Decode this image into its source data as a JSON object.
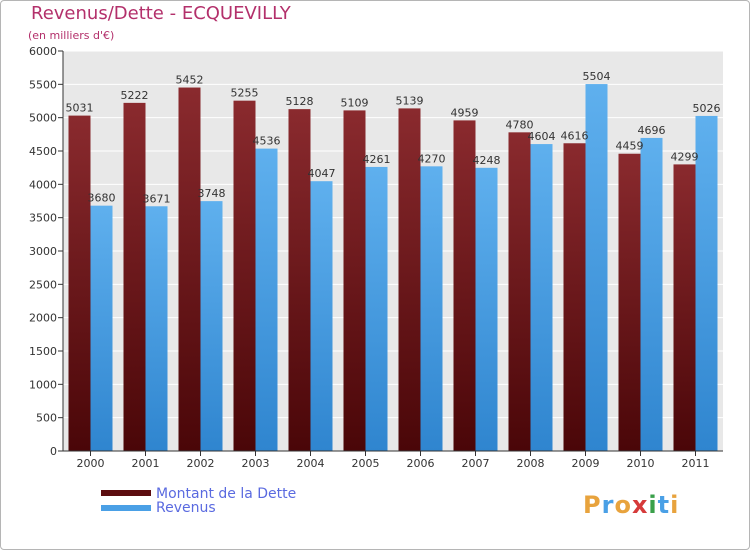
{
  "title": "Revenus/Dette - ECQUEVILLY",
  "subtitle": "(en milliers d'€)",
  "chart_data": {
    "type": "bar",
    "title": "Revenus/Dette - ECQUEVILLY",
    "ylabel": "(en milliers d'€)",
    "xlabel": "",
    "categories": [
      "2000",
      "2001",
      "2002",
      "2003",
      "2004",
      "2005",
      "2006",
      "2007",
      "2008",
      "2009",
      "2010",
      "2011"
    ],
    "series": [
      {
        "name": "Montant de la Dette",
        "color": "#7a1f23",
        "values": [
          5031,
          5222,
          5452,
          5255,
          5128,
          5109,
          5139,
          4959,
          4780,
          4616,
          4459,
          4299
        ]
      },
      {
        "name": "Revenus",
        "color": "#4aa0e6",
        "values": [
          3680,
          3671,
          3748,
          4536,
          4047,
          4261,
          4270,
          4248,
          4604,
          5504,
          4696,
          5026
        ]
      }
    ],
    "ylim": [
      0,
      6000
    ],
    "yticks": [
      0,
      500,
      1000,
      1500,
      2000,
      2500,
      3000,
      3500,
      4000,
      4500,
      5000,
      5500,
      6000
    ],
    "grid": true,
    "legend": "bottom-left"
  },
  "legend": [
    {
      "label": "Montant de la Dette",
      "color": "#5c0d0f"
    },
    {
      "label": "Revenus",
      "color": "#4aa0e6"
    }
  ],
  "logo": {
    "text": "Proxiti",
    "letters": [
      {
        "ch": "P",
        "color": "#e8a33d"
      },
      {
        "ch": "r",
        "color": "#4aa0e6"
      },
      {
        "ch": "o",
        "color": "#e8a33d"
      },
      {
        "ch": "x",
        "color": "#d63a3a"
      },
      {
        "ch": "i",
        "color": "#3aa04a"
      },
      {
        "ch": "t",
        "color": "#4aa0e6"
      },
      {
        "ch": "i",
        "color": "#e8a33d"
      }
    ]
  }
}
